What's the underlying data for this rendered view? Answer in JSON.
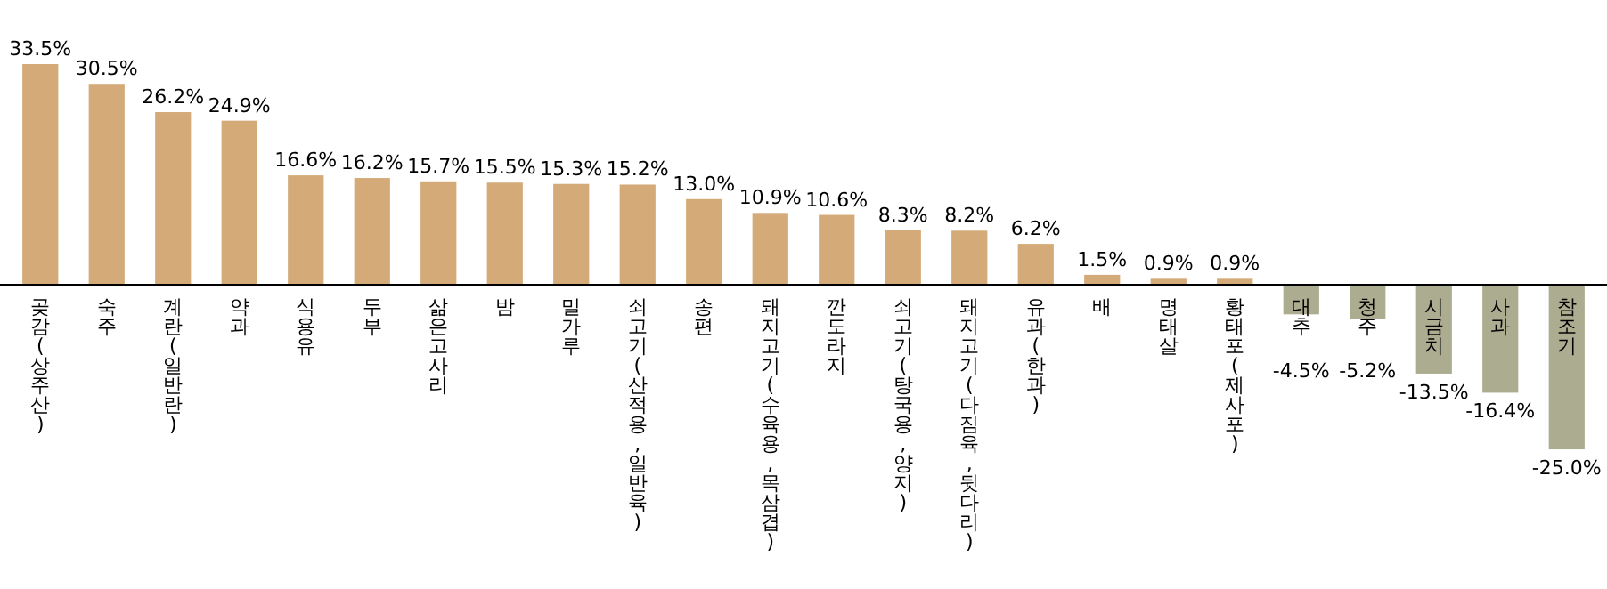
{
  "chart_data": {
    "type": "bar",
    "categories": [
      "곶감(상주산)",
      "숙주",
      "계란(일반란)",
      "약과",
      "식용유",
      "두부",
      "삶은고사리",
      "밤",
      "밀가루",
      "쇠고기(산적용,일반육)",
      "송편",
      "돼지고기(수육용,목삼겹)",
      "깐도라지",
      "쇠고기(탕국용,양지)",
      "돼지고기(다짐육,뒷다리)",
      "유과(한과)",
      "배",
      "명태살",
      "황태포(제사포)",
      "대추",
      "청주",
      "시금치",
      "사과",
      "참조기"
    ],
    "values": [
      33.5,
      30.5,
      26.2,
      24.9,
      16.6,
      16.2,
      15.7,
      15.5,
      15.3,
      15.2,
      13.0,
      10.9,
      10.6,
      8.3,
      8.2,
      6.2,
      1.5,
      0.9,
      0.9,
      -4.5,
      -5.2,
      -13.5,
      -16.4,
      -25.0
    ],
    "value_labels": [
      "33.5%",
      "30.5%",
      "26.2%",
      "24.9%",
      "16.6%",
      "16.2%",
      "15.7%",
      "15.5%",
      "15.3%",
      "15.2%",
      "13.0%",
      "10.9%",
      "10.6%",
      "8.3%",
      "8.2%",
      "6.2%",
      "1.5%",
      "0.9%",
      "0.9%",
      "-4.5%",
      "-5.2%",
      "-13.5%",
      "-16.4%",
      "-25.0%"
    ],
    "colors": [
      "#d4aa78",
      "#d4aa78",
      "#d4aa78",
      "#d4aa78",
      "#d4aa78",
      "#d4aa78",
      "#d4aa78",
      "#d4aa78",
      "#d4aa78",
      "#d4aa78",
      "#d4aa78",
      "#d4aa78",
      "#d4aa78",
      "#d4aa78",
      "#d4aa78",
      "#d4aa78",
      "#d4aa78",
      "#d4aa78",
      "#d4aa78",
      "#acac91",
      "#acac91",
      "#acac91",
      "#acac91",
      "#acac91"
    ]
  }
}
